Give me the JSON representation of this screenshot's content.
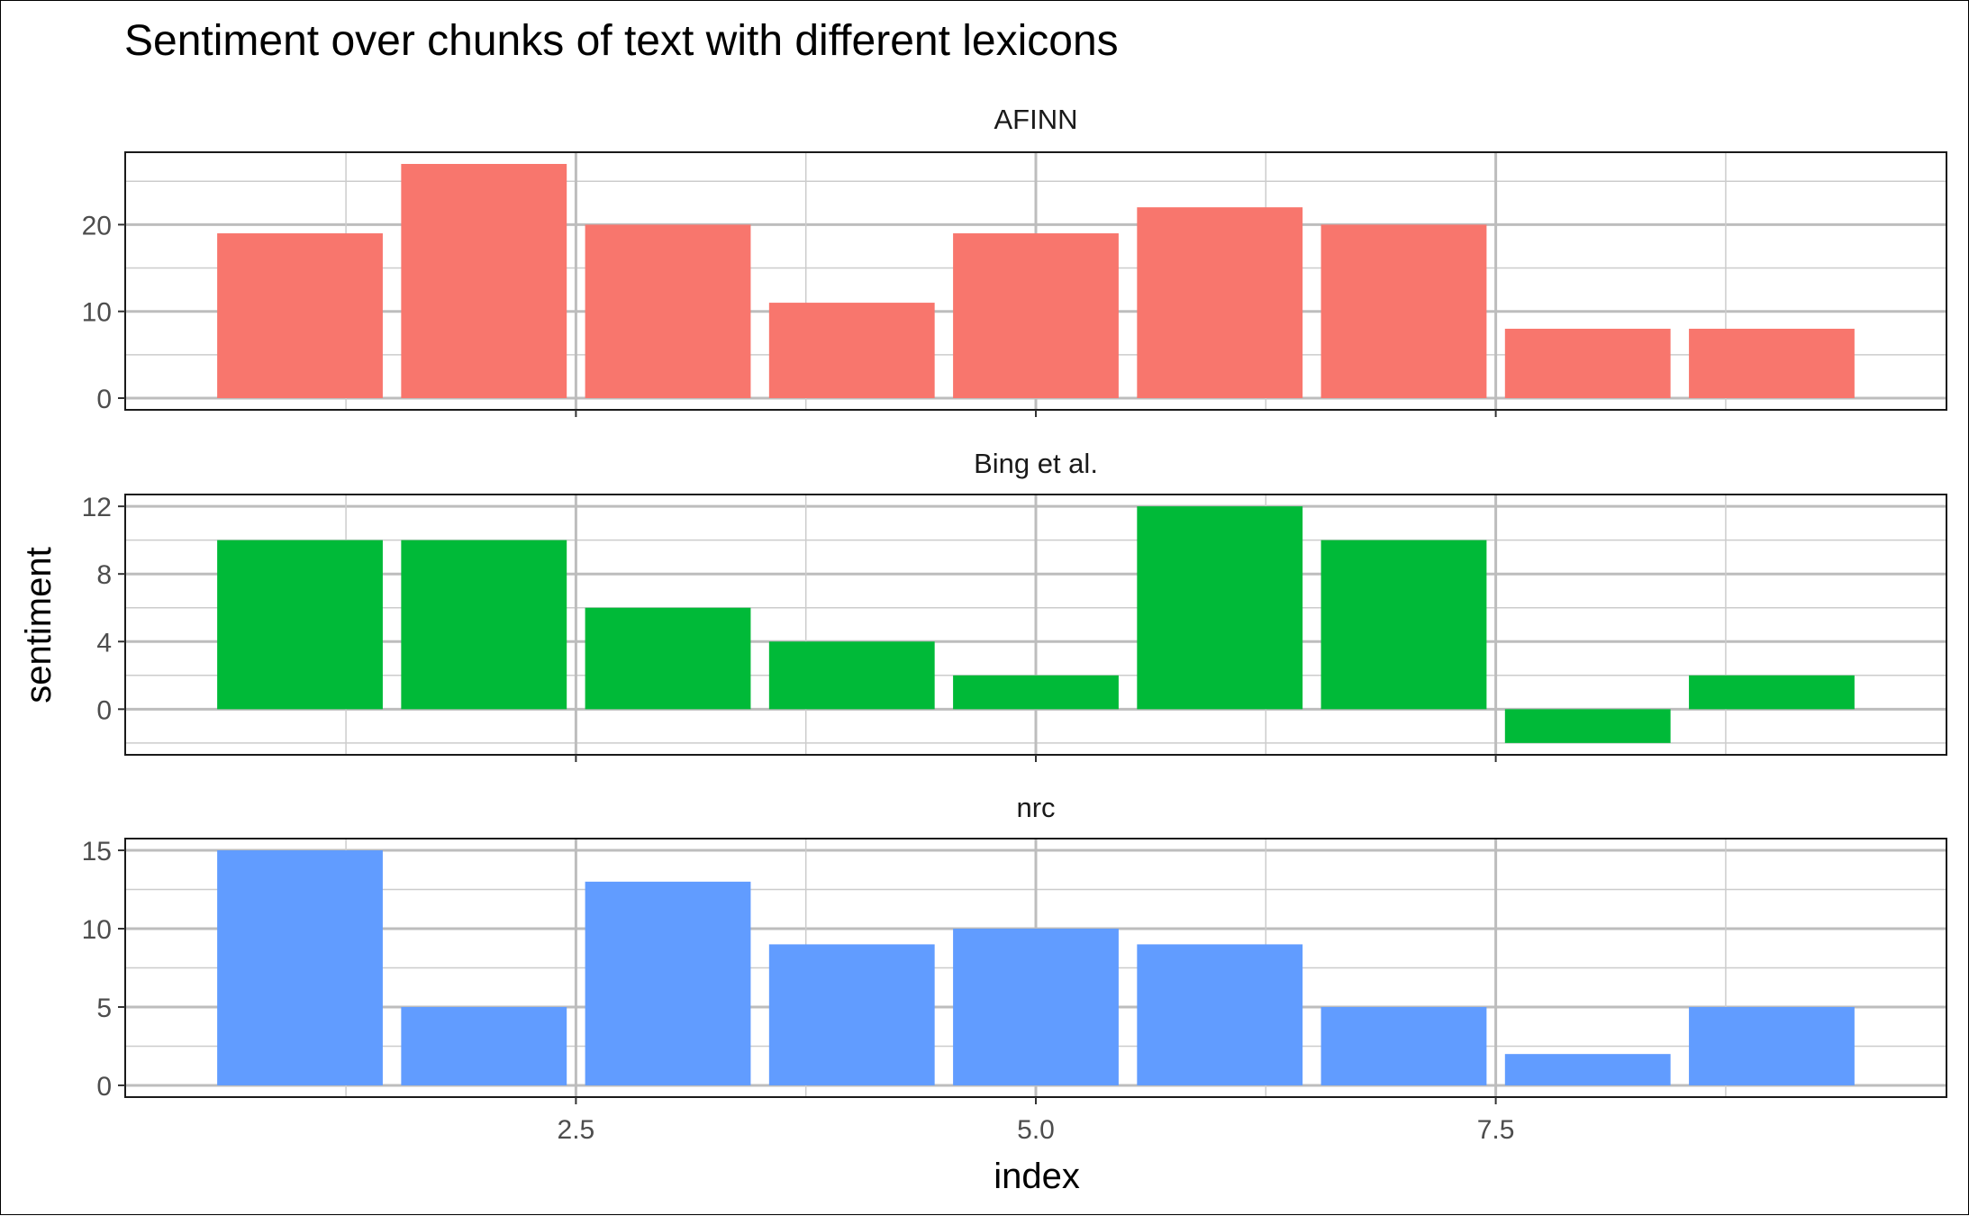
{
  "chart_data": {
    "type": "bar",
    "title": "Sentiment over chunks of text with different lexicons",
    "xlabel": "index",
    "ylabel": "sentiment",
    "x": [
      1,
      2,
      3,
      4,
      5,
      6,
      7,
      8,
      9
    ],
    "xlim": [
      0.05,
      9.95
    ],
    "xticks": [
      2.5,
      5.0,
      7.5
    ],
    "xtick_labels": [
      "2.5",
      "5.0",
      "7.5"
    ],
    "grid": true,
    "legend": "none",
    "facets": [
      {
        "name": "AFINN",
        "color": "#F8766D",
        "values": [
          19,
          27,
          20,
          11,
          19,
          22,
          20,
          8,
          8
        ],
        "ylim": [
          -1.35,
          28.35
        ],
        "yticks": [
          0,
          10,
          20
        ],
        "ytick_labels": [
          "0",
          "10",
          "20"
        ]
      },
      {
        "name": "Bing et al.",
        "color": "#00BA38",
        "values": [
          10,
          10,
          6,
          4,
          2,
          12,
          10,
          -2,
          2
        ],
        "ylim": [
          -2.7,
          12.7
        ],
        "yticks": [
          0,
          4,
          8,
          12
        ],
        "ytick_labels": [
          "0",
          "4",
          "8",
          "12"
        ]
      },
      {
        "name": "nrc",
        "color": "#619CFF",
        "values": [
          15,
          5,
          13,
          9,
          10,
          9,
          5,
          2,
          5
        ],
        "ylim": [
          -0.75,
          15.75
        ],
        "yticks": [
          0,
          5,
          10,
          15
        ],
        "ytick_labels": [
          "0",
          "5",
          "10",
          "15"
        ]
      }
    ]
  }
}
